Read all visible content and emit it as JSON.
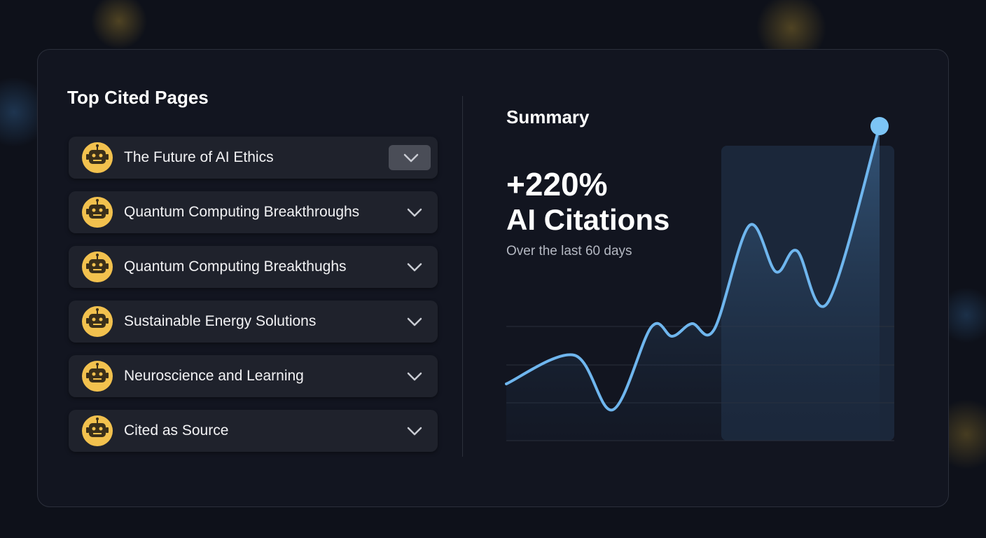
{
  "top_cited": {
    "title": "Top Cited Pages",
    "items": [
      "The Future of AI Ethics",
      "Quantum Computing Breakthroughs",
      "Quantum Computing Breakthughs",
      "Sustainable Energy Solutions",
      "Neuroscience and Learning",
      "Cited as Source"
    ]
  },
  "summary": {
    "title": "Summary",
    "headline": "+220%",
    "metric": "AI Citations",
    "period": "Over the last 60 days"
  }
}
